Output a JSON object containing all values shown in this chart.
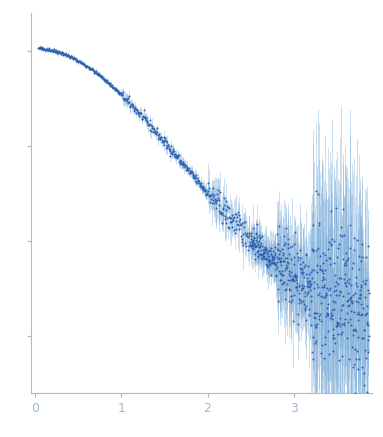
{
  "title": "",
  "xlabel": "",
  "ylabel": "",
  "xlim": [
    -0.05,
    3.9
  ],
  "ylim": [
    -0.15,
    0.85
  ],
  "dot_color": "#2b5fad",
  "error_color": "#7aaad8",
  "background_color": "#ffffff",
  "axis_color": "#9dbcd8",
  "tick_color": "#9dbcd8",
  "tick_label_color": "#9dbcd8",
  "xticks": [
    0,
    1,
    2,
    3
  ],
  "q_max": 3.87,
  "q_min": 0.04,
  "I0": 0.75,
  "seed": 42
}
